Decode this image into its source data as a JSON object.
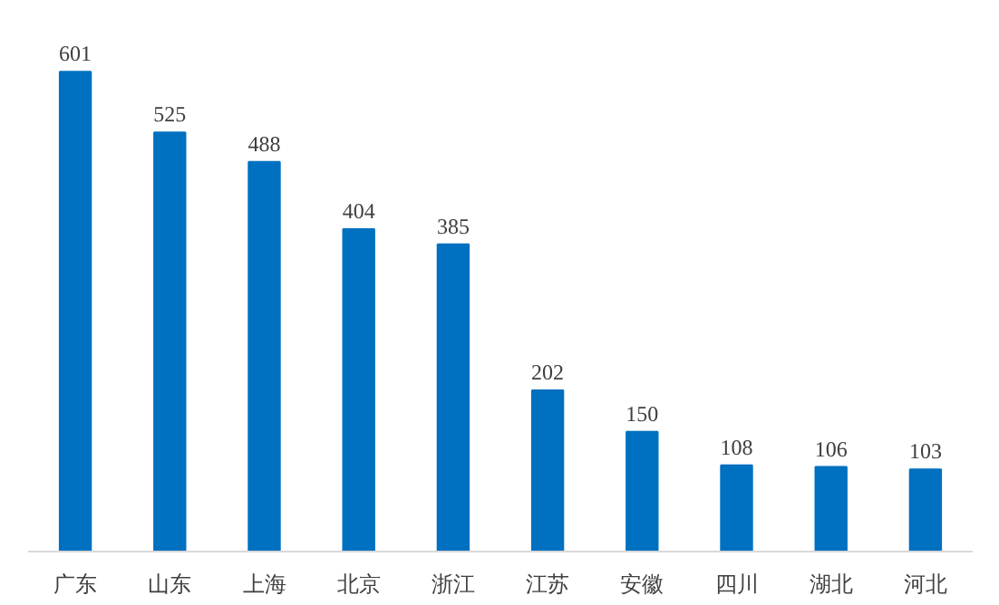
{
  "chart_data": {
    "type": "bar",
    "categories": [
      "广东",
      "山东",
      "上海",
      "北京",
      "浙江",
      "江苏",
      "安徽",
      "四川",
      "湖北",
      "河北"
    ],
    "values": [
      601,
      525,
      488,
      404,
      385,
      202,
      150,
      108,
      106,
      103
    ],
    "color": "#0070c0",
    "data_labels": true,
    "grid": false
  }
}
